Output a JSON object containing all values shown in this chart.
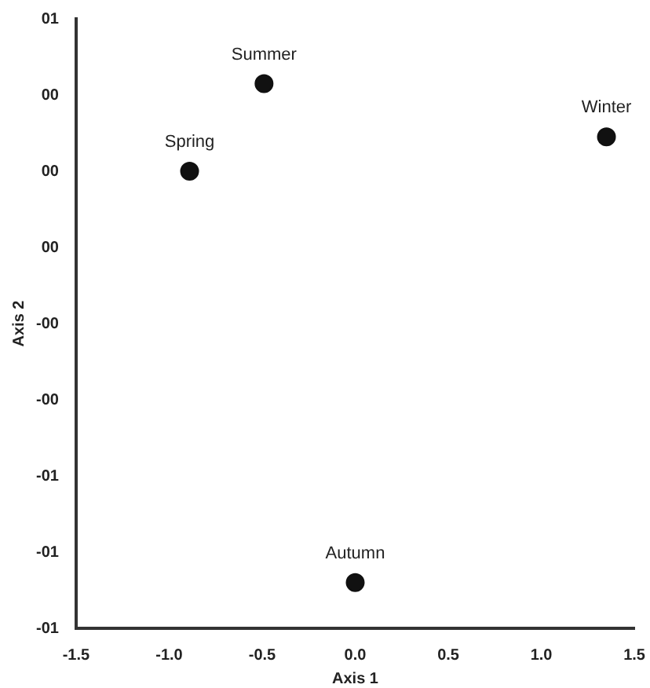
{
  "chart_data": {
    "type": "scatter",
    "xlabel": "Axis 1",
    "ylabel": "Axis 2",
    "x": [
      -0.89,
      -0.49,
      1.35,
      0.0
    ],
    "values": [
      0.25,
      0.48,
      0.34,
      -0.83
    ],
    "color": "#111111",
    "marker": "circle",
    "xlim": [
      -1.5,
      1.5
    ],
    "xticks": [
      -1.5,
      {
        "value": -1,
        "label": "-1.0"
      },
      -0.5,
      {
        "value": 0,
        "label": "0.0"
      },
      0.5,
      {
        "value": 1,
        "label": "1.0"
      },
      1.5
    ],
    "ylim": [
      -0.95,
      0.65
    ],
    "yticks": [
      {
        "value": 0.65,
        "label": "01"
      },
      {
        "value": 0.45,
        "label": "00"
      },
      {
        "value": 0.25,
        "label": "00"
      },
      {
        "value": 0.05,
        "label": "00"
      },
      {
        "value": -0.15,
        "label": "-00"
      },
      {
        "value": -0.35,
        "label": "-00"
      },
      {
        "value": -0.55,
        "label": "-01"
      },
      {
        "value": -0.75,
        "label": "-01"
      },
      {
        "value": -0.95,
        "label": "-01"
      }
    ],
    "annotations": [
      {
        "text": "Spring",
        "x": -0.89,
        "y": 0.25
      },
      {
        "text": "Summer",
        "x": -0.49,
        "y": 0.48
      },
      {
        "text": "Winter",
        "x": 1.35,
        "y": 0.34
      },
      {
        "text": "Autumn",
        "x": 0.0,
        "y": -0.83
      }
    ],
    "grid": false,
    "legend": false
  }
}
